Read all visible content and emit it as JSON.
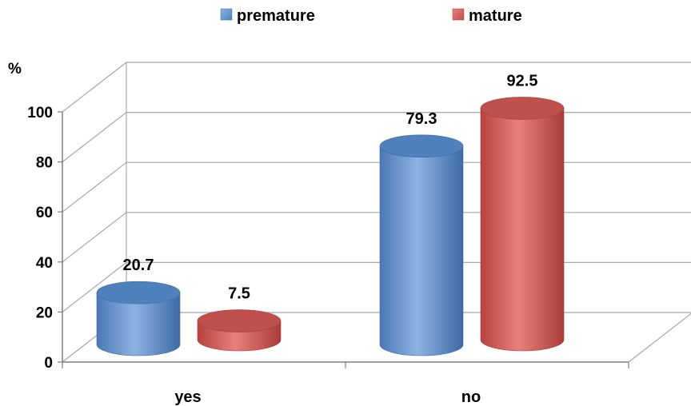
{
  "chart_data": {
    "type": "bar",
    "style": "3d-cylinder",
    "unit": "%",
    "categories": [
      "yes",
      "no"
    ],
    "series": [
      {
        "name": "premature",
        "color": "#4f81bd",
        "values": [
          20.7,
          79.3
        ],
        "labels": [
          "20.7",
          "79.3"
        ]
      },
      {
        "name": "mature",
        "color": "#c0504d",
        "values": [
          7.5,
          92.5
        ],
        "labels": [
          "7.5",
          "92.5"
        ]
      }
    ],
    "yticks": [
      "0",
      "20",
      "40",
      "60",
      "80",
      "100"
    ],
    "ylim": [
      0,
      100
    ],
    "grid": true,
    "legend_position": "top"
  }
}
